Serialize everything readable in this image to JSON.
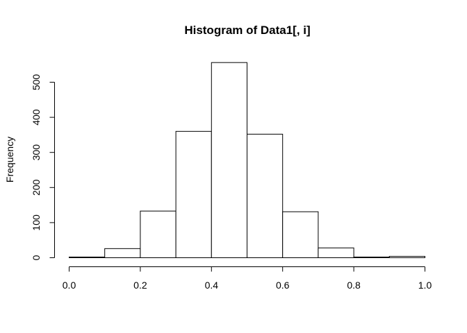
{
  "chart_data": {
    "type": "bar",
    "title": "Histogram of Data1[, i]",
    "xlabel": "",
    "ylabel": "Frequency",
    "bins": [
      {
        "start": 0.0,
        "end": 0.1,
        "count": 2
      },
      {
        "start": 0.1,
        "end": 0.2,
        "count": 26
      },
      {
        "start": 0.2,
        "end": 0.3,
        "count": 133
      },
      {
        "start": 0.3,
        "end": 0.4,
        "count": 360
      },
      {
        "start": 0.4,
        "end": 0.5,
        "count": 556
      },
      {
        "start": 0.5,
        "end": 0.6,
        "count": 352
      },
      {
        "start": 0.6,
        "end": 0.7,
        "count": 131
      },
      {
        "start": 0.7,
        "end": 0.8,
        "count": 28
      },
      {
        "start": 0.8,
        "end": 0.9,
        "count": 2
      },
      {
        "start": 0.9,
        "end": 1.0,
        "count": 4
      }
    ],
    "xlim": [
      0,
      1
    ],
    "ylim": [
      0,
      556
    ],
    "x_ticks": [
      0.0,
      0.2,
      0.4,
      0.6,
      0.8,
      1.0
    ],
    "x_tick_labels": [
      "0.0",
      "0.2",
      "0.4",
      "0.6",
      "0.8",
      "1.0"
    ],
    "y_ticks": [
      0,
      100,
      200,
      300,
      400,
      500
    ],
    "y_tick_labels": [
      "0",
      "100",
      "200",
      "300",
      "400",
      "500"
    ],
    "grid": false,
    "legend": "none"
  }
}
